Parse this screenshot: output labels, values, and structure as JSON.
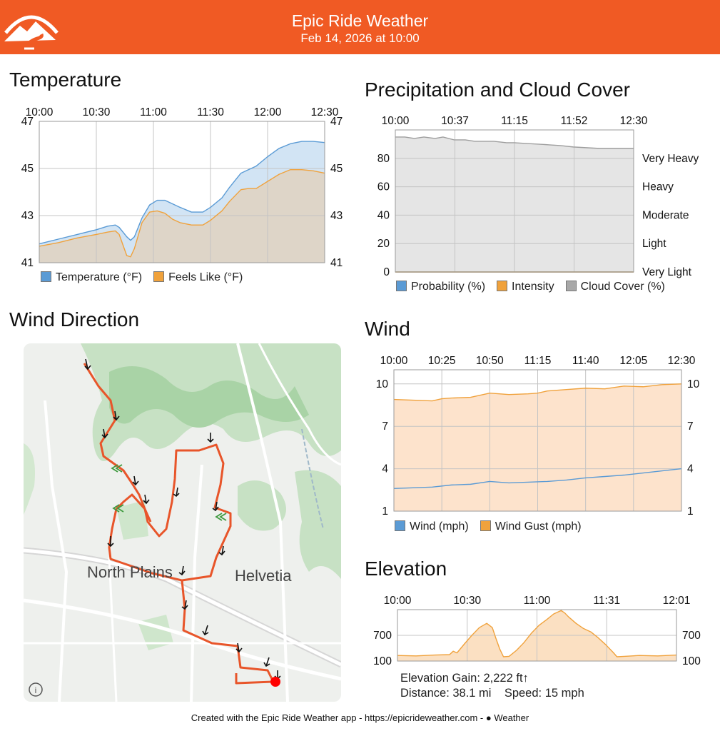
{
  "header": {
    "title": "Epic Ride Weather",
    "subtitle": "Feb 14, 2026 at 10:00",
    "bg_color": "#f05a24"
  },
  "charts": {
    "temperature": {
      "title": "Temperature"
    },
    "precipitation": {
      "title": "Precipitation and Cloud Cover"
    },
    "wind": {
      "title": "Wind"
    },
    "elevation": {
      "title": "Elevation"
    }
  },
  "chart_data": [
    {
      "id": "temperature",
      "type": "area",
      "title": "Temperature",
      "x_ticks": [
        "10:00",
        "10:30",
        "11:00",
        "11:30",
        "12:00",
        "12:30"
      ],
      "x_range_min": [
        0,
        150
      ],
      "ylim": [
        41,
        47
      ],
      "y_ticks": [
        41,
        43,
        45,
        47
      ],
      "grid": true,
      "legend_position": "bottom",
      "series": [
        {
          "name": "Temperature (°F)",
          "color": "#5b9bd5",
          "fill": "#d2e4f4",
          "x": [
            0,
            10,
            20,
            30,
            36,
            40,
            42,
            46,
            48,
            50,
            54,
            58,
            62,
            66,
            70,
            74,
            80,
            86,
            90,
            96,
            100,
            106,
            110,
            114,
            120,
            126,
            132,
            138,
            144,
            150
          ],
          "y": [
            41.8,
            42.0,
            42.2,
            42.4,
            42.55,
            42.6,
            42.5,
            42.1,
            41.95,
            42.1,
            42.9,
            43.45,
            43.65,
            43.65,
            43.5,
            43.35,
            43.15,
            43.15,
            43.35,
            43.75,
            44.2,
            44.8,
            44.95,
            45.1,
            45.5,
            45.85,
            46.05,
            46.15,
            46.15,
            46.1
          ]
        },
        {
          "name": "Feels Like (°F)",
          "color": "#f0a23c",
          "fill": "#ded5c8",
          "x": [
            0,
            10,
            20,
            30,
            36,
            40,
            42,
            46,
            48,
            50,
            54,
            58,
            62,
            66,
            70,
            74,
            80,
            86,
            90,
            96,
            100,
            106,
            110,
            114,
            120,
            126,
            132,
            138,
            144,
            150
          ],
          "y": [
            41.7,
            41.85,
            42.05,
            42.2,
            42.3,
            42.35,
            42.2,
            41.3,
            41.25,
            41.6,
            42.7,
            43.15,
            43.2,
            43.1,
            42.85,
            42.7,
            42.6,
            42.6,
            42.8,
            43.2,
            43.6,
            44.1,
            44.15,
            44.15,
            44.45,
            44.75,
            44.95,
            44.95,
            44.9,
            44.8
          ]
        }
      ]
    },
    {
      "id": "precipitation",
      "type": "area",
      "title": "Precipitation and Cloud Cover",
      "x_ticks": [
        "10:00",
        "10:37",
        "11:15",
        "11:52",
        "12:30"
      ],
      "ylim": [
        0,
        100
      ],
      "y_ticks": [
        0,
        20,
        40,
        60,
        80
      ],
      "right_ticks": [
        "Very Light",
        "Light",
        "Moderate",
        "Heavy",
        "Very Heavy"
      ],
      "grid": true,
      "legend_position": "bottom",
      "series": [
        {
          "name": "Probability (%)",
          "color": "#5b9bd5",
          "values": [
            0,
            0,
            0,
            0,
            0,
            0
          ]
        },
        {
          "name": "Intensity",
          "color": "#f0a23c",
          "values": [
            0,
            0,
            0,
            0,
            0,
            0
          ]
        },
        {
          "name": "Cloud Cover (%)",
          "color": "#9e9e9e",
          "fill": "#e5e5e5",
          "x": [
            0,
            6,
            12,
            18,
            25,
            30,
            37,
            44,
            50,
            56,
            62,
            70,
            75,
            82,
            90,
            97,
            104,
            112,
            120,
            128,
            135,
            142,
            150
          ],
          "values": [
            95,
            95,
            94,
            95,
            94,
            95,
            93,
            93,
            92,
            92,
            92,
            91,
            91,
            90.5,
            90,
            89.5,
            89,
            88,
            87.5,
            87,
            87,
            87,
            87
          ]
        }
      ]
    },
    {
      "id": "wind",
      "type": "area",
      "title": "Wind",
      "x_ticks": [
        "10:00",
        "10:25",
        "10:50",
        "11:15",
        "11:40",
        "12:05",
        "12:30"
      ],
      "ylim": [
        1,
        11
      ],
      "y_ticks": [
        1,
        4,
        7,
        10
      ],
      "grid": true,
      "legend_position": "bottom",
      "series": [
        {
          "name": "Wind (mph)",
          "color": "#5b9bd5",
          "fill": "#ddd4c8",
          "x": [
            0,
            10,
            20,
            30,
            40,
            50,
            55,
            60,
            70,
            80,
            90,
            100,
            110,
            120,
            130,
            140,
            150
          ],
          "values": [
            2.6,
            2.65,
            2.7,
            2.85,
            2.9,
            3.1,
            3.05,
            3.0,
            3.05,
            3.1,
            3.2,
            3.35,
            3.45,
            3.55,
            3.7,
            3.85,
            4.0
          ]
        },
        {
          "name": "Wind Gust (mph)",
          "color": "#f0a23c",
          "fill": "#fde3cc",
          "x": [
            0,
            10,
            20,
            25,
            30,
            40,
            50,
            60,
            70,
            75,
            80,
            90,
            100,
            110,
            120,
            130,
            140,
            150
          ],
          "values": [
            8.9,
            8.85,
            8.8,
            8.95,
            9.0,
            9.05,
            9.35,
            9.25,
            9.3,
            9.35,
            9.5,
            9.6,
            9.7,
            9.65,
            9.85,
            9.8,
            9.95,
            10.0
          ]
        }
      ]
    },
    {
      "id": "elevation",
      "type": "area",
      "title": "Elevation",
      "x_ticks": [
        "10:00",
        "10:30",
        "11:00",
        "11:31",
        "12:01"
      ],
      "ylim": [
        100,
        1300
      ],
      "y_ticks": [
        100,
        700
      ],
      "grid": true,
      "series": [
        {
          "name": "Elevation",
          "color": "#f0a23c",
          "fill": "#fbe0c2",
          "x": [
            0,
            10,
            20,
            28,
            30,
            32,
            36,
            40,
            44,
            48,
            51,
            53,
            55,
            57,
            60,
            64,
            68,
            72,
            76,
            80,
            84,
            88,
            90,
            92,
            96,
            100,
            104,
            108,
            112,
            116,
            118,
            122,
            130,
            140,
            150
          ],
          "values": [
            230,
            220,
            240,
            250,
            330,
            290,
            500,
            700,
            880,
            980,
            880,
            620,
            380,
            200,
            210,
            350,
            530,
            750,
            930,
            1060,
            1200,
            1280,
            1220,
            1130,
            980,
            860,
            780,
            640,
            480,
            300,
            200,
            210,
            230,
            220,
            240
          ]
        }
      ]
    }
  ],
  "legends": {
    "temperature": [
      {
        "label": "Temperature (°F)",
        "color": "#5b9bd5"
      },
      {
        "label": "Feels Like (°F)",
        "color": "#f0a23c"
      }
    ],
    "precipitation": [
      {
        "label": "Probability (%)",
        "color": "#5b9bd5"
      },
      {
        "label": "Intensity",
        "color": "#f0a23c"
      },
      {
        "label": "Cloud Cover (%)",
        "color": "#a8a8a8"
      }
    ],
    "wind": [
      {
        "label": "Wind (mph)",
        "color": "#5b9bd5"
      },
      {
        "label": "Wind Gust (mph)",
        "color": "#f0a23c"
      }
    ]
  },
  "map": {
    "title": "Wind Direction",
    "labels": {
      "north_plains": "North Plains",
      "helvetia": "Helvetia"
    },
    "info_icon": "info-icon",
    "route_color": "#e8552a",
    "end_marker_color": "#ff0000"
  },
  "elevation_stats": {
    "gain": "Elevation Gain: 2,222 ft↑",
    "distance": "Distance: 38.1 mi",
    "speed": "Speed: 15 mph"
  },
  "footer": {
    "text": "Created with the Epic Ride Weather app - https://epicrideweather.com - ",
    "apple_icon": "apple-icon",
    "weather": "Weather"
  }
}
